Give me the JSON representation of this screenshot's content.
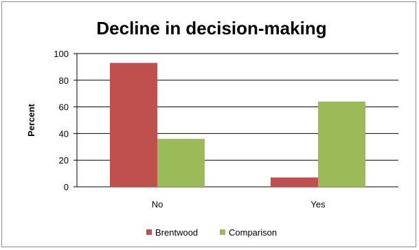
{
  "chart_data": {
    "type": "bar",
    "title": "Decline in decision-making",
    "xlabel": "",
    "ylabel": "Percent",
    "categories": [
      "No",
      "Yes"
    ],
    "series": [
      {
        "name": "Brentwood",
        "values": [
          93,
          7
        ],
        "color": "#c0504d"
      },
      {
        "name": "Comparison",
        "values": [
          36,
          64
        ],
        "color": "#9bbb59"
      }
    ],
    "ylim": [
      0,
      100
    ],
    "yticks": [
      0,
      20,
      40,
      60,
      80,
      100
    ],
    "grid": true,
    "legend_position": "bottom"
  }
}
